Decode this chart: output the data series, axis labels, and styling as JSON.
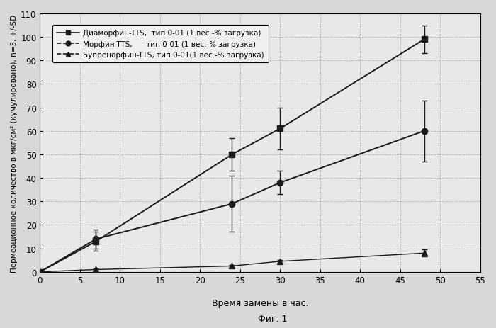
{
  "title": "",
  "xlabel": "Время замены в час.",
  "ylabel": "Пермеационное количество в мкг/см² (кумулировано), n=3, +/-SD",
  "subtitle": "Фиг. 1",
  "xlim": [
    0,
    55
  ],
  "ylim": [
    0,
    110
  ],
  "xticks": [
    0,
    5,
    10,
    15,
    20,
    25,
    30,
    35,
    40,
    45,
    50,
    55
  ],
  "yticks": [
    0,
    10,
    20,
    30,
    40,
    50,
    60,
    70,
    80,
    90,
    100,
    110
  ],
  "series": [
    {
      "label": "Диаморфин-TTS,  тип 0-01 (1 вес.-% загрузка)",
      "x": [
        0,
        7,
        24,
        30,
        48
      ],
      "y": [
        0,
        13,
        50,
        61,
        99
      ],
      "yerr": [
        0,
        4,
        7,
        9,
        6
      ],
      "marker": "s",
      "linestyle": "-",
      "color": "#1a1a1a",
      "markersize": 6,
      "linewidth": 1.4,
      "fillstyle": "full"
    },
    {
      "label": "Морфин-TTS,      тип 0-01 (1 вес.-% загрузка)",
      "x": [
        0,
        7,
        24,
        30,
        48
      ],
      "y": [
        0,
        14,
        29,
        38,
        60
      ],
      "yerr": [
        0,
        4,
        12,
        5,
        13
      ],
      "marker": "o",
      "linestyle": "-",
      "color": "#1a1a1a",
      "markersize": 6,
      "linewidth": 1.4,
      "fillstyle": "full"
    },
    {
      "label": "Бупренорфин-TTS, тип 0-01(1 вес.-% загрузка)",
      "x": [
        0,
        7,
        24,
        30,
        48
      ],
      "y": [
        0,
        1,
        2.5,
        4.5,
        8
      ],
      "yerr": [
        0,
        0.5,
        0.5,
        0.5,
        1.5
      ],
      "marker": "^",
      "linestyle": "-",
      "color": "#1a1a1a",
      "markersize": 6,
      "linewidth": 1.0,
      "fillstyle": "full"
    }
  ],
  "legend_linestyles": [
    "-",
    "--",
    "--"
  ],
  "background_color": "#d8d8d8",
  "plot_bg_color": "#e8e8e8",
  "grid_color": "#888888",
  "grid_linestyle": ":",
  "grid_linewidth": 0.6
}
